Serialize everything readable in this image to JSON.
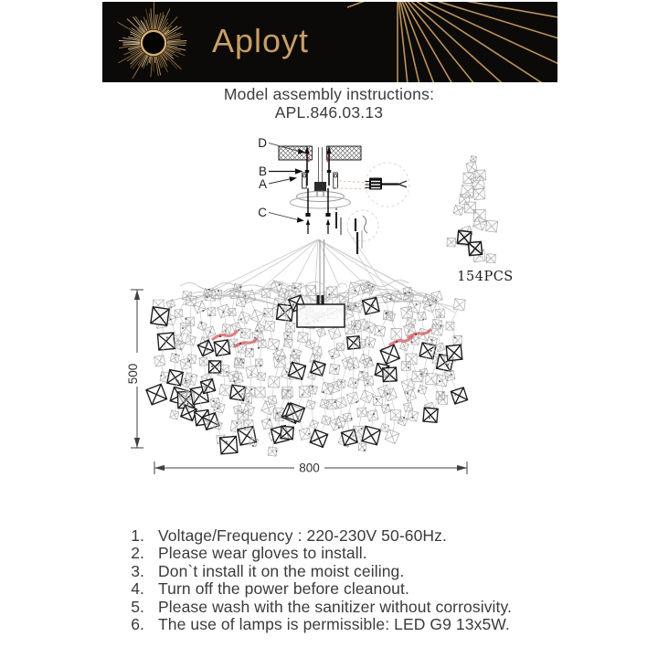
{
  "banner": {
    "brand": "Aployt",
    "bg_color": "#0c0a08",
    "gold_color": "#c49a62"
  },
  "header": {
    "title": "Model assembly instructions:",
    "model": "APL.846.03.13"
  },
  "diagram": {
    "labels": {
      "d": "D",
      "b": "B",
      "a": "A",
      "c": "C"
    },
    "parts_count": "154PCS",
    "dim_height": "500",
    "dim_width": "800",
    "colors": {
      "dark": "#1d1d1d",
      "light": "#a6a6a6",
      "faint": "#c6c6c6",
      "red": "#d05a5c",
      "red_dash": "#e6b6b6",
      "dim": "#3f3f3f"
    }
  },
  "instructions": {
    "items": [
      {
        "num": "1.",
        "text": "Voltage/Frequency : 220-230V 50-60Hz."
      },
      {
        "num": "2.",
        "text": "Please wear gloves to install."
      },
      {
        "num": "3.",
        "text": "Don`t install it on the moist ceiling."
      },
      {
        "num": "4.",
        "text": "Turn off the power before cleanout."
      },
      {
        "num": "5.",
        "text": "Please wash with the sanitizer without corrosivity."
      },
      {
        "num": "6.",
        "text": "The use of lamps is permissible: LED G9 13x5W."
      }
    ]
  }
}
